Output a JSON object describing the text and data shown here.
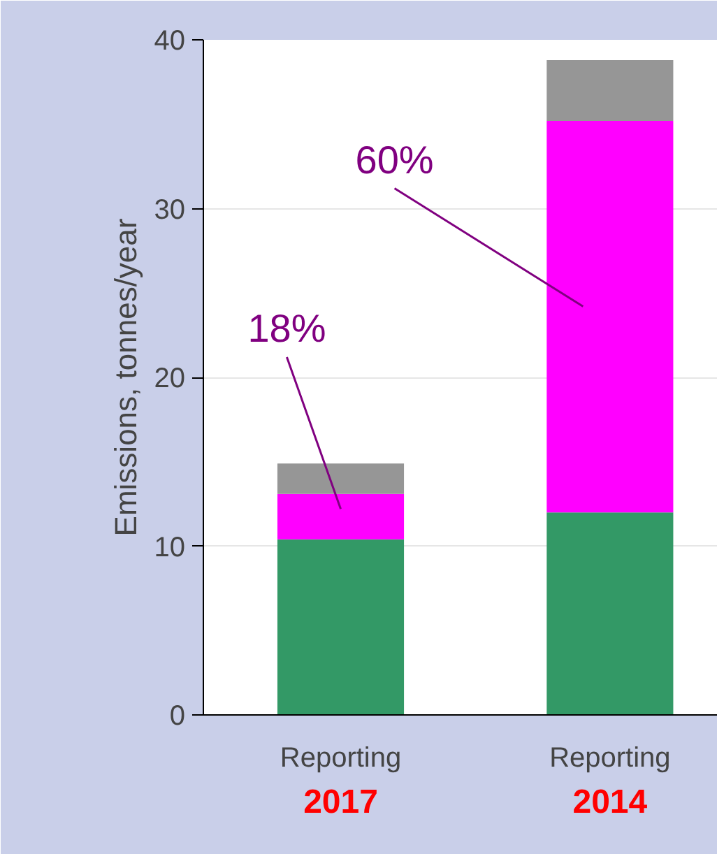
{
  "chart_data": {
    "type": "bar",
    "stacked": true,
    "ylabel": "Emissions, tonnes/year",
    "categories": [
      "Reporting\n2017",
      "Reporting\n2014"
    ],
    "series": [
      {
        "color": "#339966",
        "values": [
          10.4,
          12.0
        ]
      },
      {
        "color": "#ff00ff",
        "values": [
          2.7,
          23.2
        ]
      },
      {
        "color": "#969696",
        "values": [
          1.8,
          3.6
        ]
      }
    ],
    "ylim": [
      0,
      40
    ],
    "yticks": [
      0,
      10,
      20,
      30,
      40
    ],
    "grid": "y",
    "annotations": [
      "18%",
      "60%"
    ]
  }
}
